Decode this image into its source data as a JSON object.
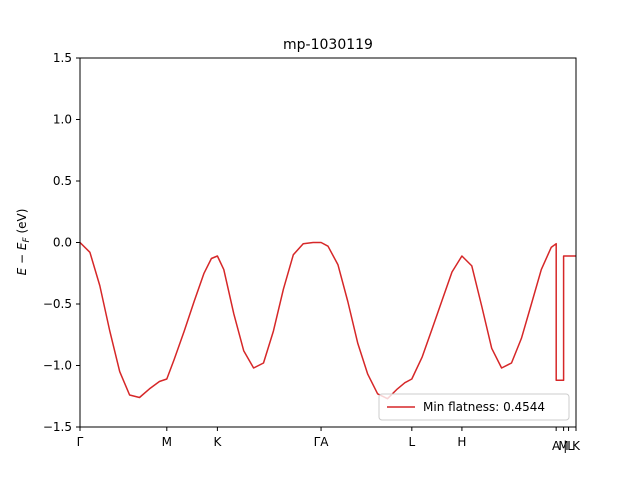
{
  "chart_data": {
    "type": "line",
    "title": "mp-1030119",
    "xlabel": "",
    "ylabel": "E − E_F (eV)",
    "ylabel_main": "E − E",
    "ylabel_sub": "F",
    "ylabel_unit": " (eV)",
    "ylim": [
      -1.5,
      1.5
    ],
    "xlim": [
      0,
      1
    ],
    "yticks": [
      {
        "value": -1.5,
        "label": "−1.5"
      },
      {
        "value": -1.0,
        "label": "−1.0"
      },
      {
        "value": -0.5,
        "label": "−0.5"
      },
      {
        "value": 0.0,
        "label": "0.0"
      },
      {
        "value": 0.5,
        "label": "0.5"
      },
      {
        "value": 1.0,
        "label": "1.0"
      },
      {
        "value": 1.5,
        "label": "1.5"
      }
    ],
    "xticks": [
      {
        "value": 0.0,
        "label": "Γ"
      },
      {
        "value": 0.175,
        "label": "M"
      },
      {
        "value": 0.277,
        "label": "K"
      },
      {
        "value": 0.486,
        "label": "ΓA"
      },
      {
        "value": 0.669,
        "label": "L"
      },
      {
        "value": 0.77,
        "label": "H"
      },
      {
        "value": 0.96,
        "label": "A"
      },
      {
        "value": 0.975,
        "label": "M"
      },
      {
        "value": 0.985,
        "label": "|L"
      },
      {
        "value": 1.0,
        "label": "K"
      }
    ],
    "legend": {
      "label": "Min flatness: 0.4544",
      "placement": "lower-right"
    },
    "series": [
      {
        "color": "#d62728",
        "x": [
          0.0,
          0.02,
          0.04,
          0.06,
          0.08,
          0.1,
          0.12,
          0.14,
          0.16,
          0.175,
          0.19,
          0.21,
          0.23,
          0.25,
          0.265,
          0.277,
          0.29,
          0.31,
          0.33,
          0.35,
          0.37,
          0.39,
          0.41,
          0.43,
          0.45,
          0.47,
          0.486,
          0.5,
          0.52,
          0.54,
          0.56,
          0.58,
          0.6,
          0.62,
          0.64,
          0.655,
          0.669,
          0.69,
          0.71,
          0.73,
          0.75,
          0.77,
          0.79,
          0.81,
          0.83,
          0.85,
          0.87,
          0.89,
          0.91,
          0.93,
          0.95,
          0.96,
          0.9601,
          0.975,
          0.9751,
          0.985,
          0.9851,
          1.0
        ],
        "y": [
          0.0,
          -0.08,
          -0.35,
          -0.72,
          -1.05,
          -1.24,
          -1.26,
          -1.19,
          -1.13,
          -1.11,
          -0.95,
          -0.72,
          -0.48,
          -0.25,
          -0.13,
          -0.11,
          -0.22,
          -0.58,
          -0.88,
          -1.02,
          -0.98,
          -0.72,
          -0.38,
          -0.1,
          -0.01,
          0.0,
          0.0,
          -0.03,
          -0.18,
          -0.48,
          -0.82,
          -1.07,
          -1.23,
          -1.27,
          -1.19,
          -1.14,
          -1.11,
          -0.93,
          -0.7,
          -0.47,
          -0.24,
          -0.11,
          -0.19,
          -0.52,
          -0.86,
          -1.02,
          -0.98,
          -0.78,
          -0.5,
          -0.22,
          -0.04,
          -0.01,
          -1.12,
          -1.12,
          -0.11,
          -0.11,
          -0.11,
          -0.11
        ]
      }
    ]
  }
}
